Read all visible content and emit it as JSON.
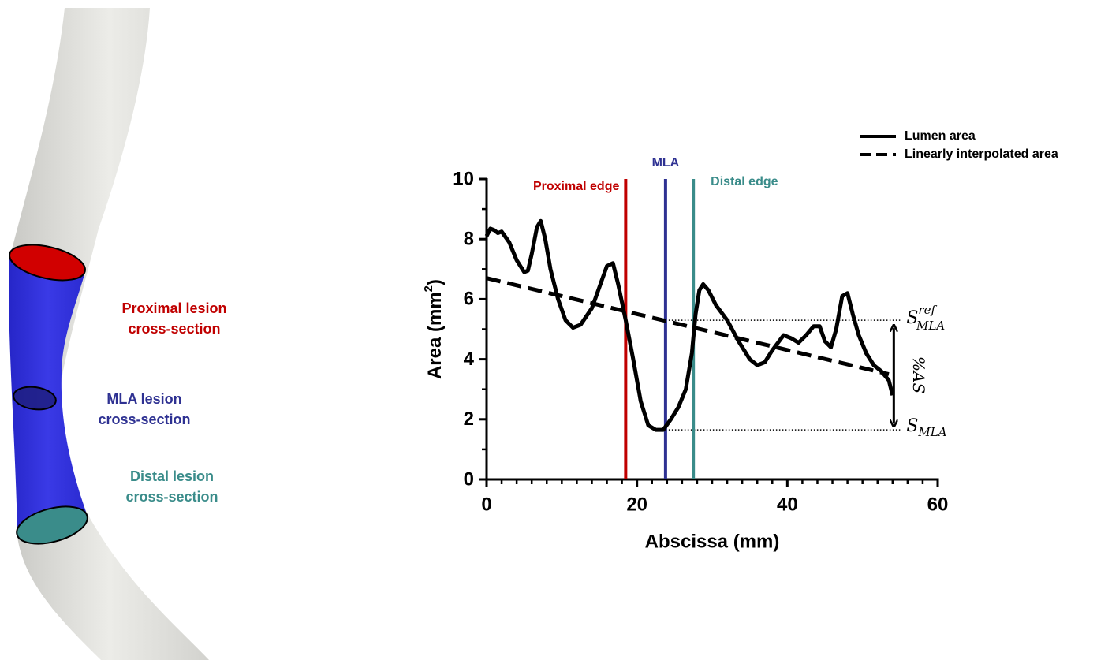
{
  "illustration": {
    "labels": [
      {
        "lines": [
          "Proximal lesion",
          "cross-section"
        ],
        "color": "#c00000"
      },
      {
        "lines": [
          "MLA lesion",
          "cross-section"
        ],
        "color": "#2e3192"
      },
      {
        "lines": [
          "Distal lesion",
          "cross-section"
        ],
        "color": "#3a8c8a"
      }
    ]
  },
  "chart_data": {
    "type": "line",
    "xlabel": "Abscissa (mm)",
    "ylabel": {
      "text": "Area (mm",
      "sup": "2",
      "end": ")"
    },
    "xlim": [
      0,
      60
    ],
    "ylim": [
      0,
      10
    ],
    "xticks": [
      0,
      20,
      40,
      60
    ],
    "yticks": [
      0,
      2,
      4,
      6,
      8,
      10
    ],
    "minor_xticks": [
      2,
      4,
      6,
      8,
      10,
      12,
      14,
      16,
      18,
      22,
      24,
      26,
      28,
      30,
      32,
      34,
      36,
      38,
      42,
      44,
      46,
      48,
      50,
      52,
      54,
      56,
      58
    ],
    "minor_yticks": [
      1,
      3,
      5,
      7,
      9
    ],
    "legend": "top-right",
    "series": [
      {
        "name": "Lumen area",
        "color": "#000000",
        "style": "solid",
        "x": [
          0,
          0.5,
          1,
          1.5,
          2,
          3,
          4,
          5,
          5.5,
          6,
          6.7,
          7.2,
          7.8,
          8.5,
          9.5,
          10.5,
          11.5,
          12.5,
          14,
          15,
          16,
          16.8,
          17.5,
          18.5,
          19.5,
          20.5,
          21.5,
          22.5,
          23.5,
          24.5,
          25.5,
          26.5,
          27.3,
          27.8,
          28.3,
          28.8,
          29.5,
          30.5,
          32,
          33.5,
          35,
          36,
          37,
          38,
          39.5,
          40.5,
          41.5,
          42.5,
          43.5,
          44.3,
          45,
          45.8,
          46.5,
          47.3,
          48,
          48.7,
          49.5,
          50.5,
          51.5,
          52.5,
          53.5,
          54
        ],
        "values": [
          8.1,
          8.35,
          8.3,
          8.2,
          8.25,
          7.9,
          7.3,
          6.9,
          6.95,
          7.5,
          8.4,
          8.6,
          8.0,
          7.0,
          6.0,
          5.3,
          5.05,
          5.15,
          5.7,
          6.4,
          7.1,
          7.2,
          6.5,
          5.3,
          4.0,
          2.6,
          1.8,
          1.65,
          1.65,
          2.0,
          2.4,
          3.0,
          4.2,
          5.5,
          6.3,
          6.5,
          6.3,
          5.8,
          5.3,
          4.6,
          4.0,
          3.8,
          3.9,
          4.3,
          4.8,
          4.7,
          4.55,
          4.8,
          5.1,
          5.1,
          4.6,
          4.4,
          5.0,
          6.1,
          6.2,
          5.5,
          4.8,
          4.2,
          3.8,
          3.6,
          3.3,
          2.8
        ]
      },
      {
        "name": "Linearly interpolated area",
        "color": "#000000",
        "style": "dashed",
        "x": [
          0,
          53.5
        ],
        "values": [
          6.7,
          3.5
        ]
      }
    ],
    "vlines": [
      {
        "x": 18.5,
        "label": "Proximal edge",
        "color": "#c00000"
      },
      {
        "x": 23.8,
        "label": "MLA",
        "color": "#2e3192"
      },
      {
        "x": 27.5,
        "label": "Distal edge",
        "color": "#3a8c8a"
      }
    ],
    "reference_lines": [
      {
        "y": 5.3,
        "from_x": 23.8,
        "to_x": 55,
        "label": {
          "base": "S",
          "sup": "ref",
          "sub": "MLA"
        }
      },
      {
        "y": 1.65,
        "from_x": 23.8,
        "to_x": 55,
        "label": {
          "base": "S",
          "sub": "MLA"
        }
      }
    ],
    "arrow_label": "%AS"
  }
}
